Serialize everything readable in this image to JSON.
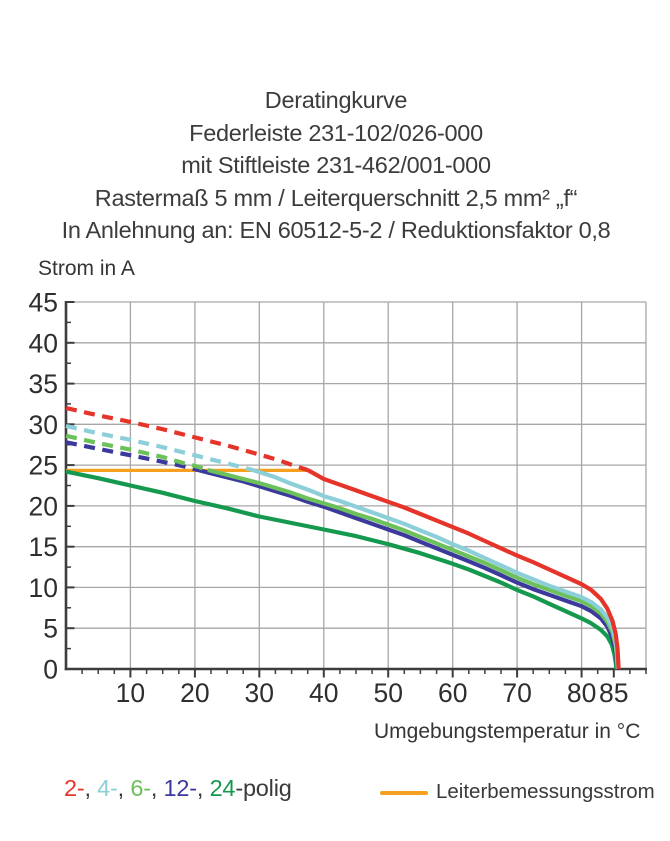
{
  "header": {
    "lines": [
      "Deratingkurve",
      "Federleiste 231-102/026-000",
      "mit Stiftleiste 231-462/001-000",
      "Rastermaß 5 mm / Leiterquerschnitt 2,5 mm² „f“",
      "In Anlehnung an: EN 60512-5-2 / Reduktionsfaktor 0,8"
    ]
  },
  "chart_data": {
    "type": "line",
    "title": "Deratingkurve",
    "xlabel": "Umgebungstemperatur in °C",
    "ylabel": "Strom in A",
    "xlim": [
      0,
      90
    ],
    "ylim": [
      0,
      45
    ],
    "grid": true,
    "grid_x_step": 10,
    "grid_y_step": 5,
    "x_tick_labels": [
      10,
      20,
      30,
      40,
      50,
      60,
      70,
      80,
      85
    ],
    "x_minor_step": 2.5,
    "y_tick_labels": [
      0,
      5,
      10,
      15,
      20,
      25,
      30,
      35,
      40,
      45
    ],
    "y_minor_step": 2.5,
    "colors": {
      "grid": "#a7a7a7",
      "axis": "#3d3d3d",
      "tick_label": "#2e2e2e",
      "pole2": "#e5342a",
      "pole4": "#8ccfd9",
      "pole6": "#6cc15a",
      "pole12": "#3b3a9c",
      "pole24": "#14994e",
      "reference": "#f5a11f"
    },
    "reference_line": {
      "name": "Leiterbemessungsstrom",
      "color": "#f5a11f",
      "y": 24.35,
      "x_start": 0,
      "x_end": 37.8
    },
    "series": [
      {
        "name": "24-polig",
        "poles": 24,
        "color": "#14994e",
        "style": "solid",
        "points": [
          [
            0,
            24.2
          ],
          [
            5,
            23.4
          ],
          [
            10,
            22.5
          ],
          [
            15,
            21.6
          ],
          [
            20,
            20.6
          ],
          [
            25,
            19.7
          ],
          [
            30,
            18.7
          ],
          [
            35,
            17.9
          ],
          [
            40,
            17.1
          ],
          [
            45,
            16.3
          ],
          [
            50,
            15.3
          ],
          [
            55,
            14.2
          ],
          [
            60,
            12.9
          ],
          [
            62.5,
            12.2
          ],
          [
            65,
            11.4
          ],
          [
            67.5,
            10.6
          ],
          [
            70,
            9.7
          ],
          [
            72.5,
            8.9
          ],
          [
            75,
            8.0
          ],
          [
            77.5,
            7.1
          ],
          [
            80,
            6.2
          ],
          [
            81.5,
            5.6
          ],
          [
            83,
            4.8
          ],
          [
            84,
            4.0
          ],
          [
            84.7,
            3.0
          ],
          [
            85.1,
            1.8
          ],
          [
            85.3,
            0.8
          ],
          [
            85.4,
            0
          ]
        ]
      },
      {
        "name": "12-polig",
        "poles": 12,
        "color": "#3b3a9c",
        "style": "dashed",
        "points": [
          [
            0,
            27.8
          ],
          [
            5,
            27.0
          ],
          [
            10,
            26.2
          ],
          [
            15,
            25.4
          ],
          [
            18,
            24.9
          ],
          [
            20.7,
            24.35
          ]
        ]
      },
      {
        "name": "12-polig",
        "poles": 12,
        "color": "#3b3a9c",
        "style": "solid",
        "points": [
          [
            20.7,
            24.35
          ],
          [
            22.5,
            24.0
          ],
          [
            25,
            23.5
          ],
          [
            27.5,
            23.0
          ],
          [
            30,
            22.4
          ],
          [
            32.5,
            21.8
          ],
          [
            35,
            21.2
          ],
          [
            37.5,
            20.5
          ],
          [
            40,
            19.9
          ],
          [
            42.5,
            19.2
          ],
          [
            45,
            18.5
          ],
          [
            47.5,
            17.8
          ],
          [
            50,
            17.1
          ],
          [
            52.5,
            16.4
          ],
          [
            55,
            15.6
          ],
          [
            57.5,
            14.8
          ],
          [
            60,
            14.0
          ],
          [
            62.5,
            13.2
          ],
          [
            65,
            12.4
          ],
          [
            67.5,
            11.5
          ],
          [
            70,
            10.6
          ],
          [
            72.5,
            9.8
          ],
          [
            75,
            9.1
          ],
          [
            77.5,
            8.4
          ],
          [
            80,
            7.7
          ],
          [
            81.5,
            7.1
          ],
          [
            83,
            6.2
          ],
          [
            84,
            5.2
          ],
          [
            84.7,
            4.0
          ],
          [
            85.2,
            2.5
          ],
          [
            85.45,
            1.2
          ],
          [
            85.55,
            0
          ]
        ]
      },
      {
        "name": "6-polig",
        "poles": 6,
        "color": "#6cc15a",
        "style": "dashed",
        "points": [
          [
            0,
            28.6
          ],
          [
            5,
            27.7
          ],
          [
            10,
            26.9
          ],
          [
            15,
            26.0
          ],
          [
            18,
            25.3
          ],
          [
            20.5,
            24.8
          ],
          [
            22,
            24.4
          ]
        ]
      },
      {
        "name": "6-polig",
        "poles": 6,
        "color": "#6cc15a",
        "style": "solid",
        "points": [
          [
            22,
            24.4
          ],
          [
            25,
            23.8
          ],
          [
            27.5,
            23.3
          ],
          [
            30,
            22.8
          ],
          [
            32.5,
            22.2
          ],
          [
            35,
            21.6
          ],
          [
            37.5,
            20.9
          ],
          [
            40,
            20.3
          ],
          [
            42.5,
            19.7
          ],
          [
            45,
            19.0
          ],
          [
            47.5,
            18.4
          ],
          [
            50,
            17.7
          ],
          [
            52.5,
            17.0
          ],
          [
            55,
            16.2
          ],
          [
            57.5,
            15.4
          ],
          [
            60,
            14.6
          ],
          [
            62.5,
            13.8
          ],
          [
            65,
            13.0
          ],
          [
            67.5,
            12.1
          ],
          [
            70,
            11.2
          ],
          [
            72.5,
            10.4
          ],
          [
            75,
            9.7
          ],
          [
            77.5,
            9.0
          ],
          [
            80,
            8.3
          ],
          [
            81.5,
            7.7
          ],
          [
            83,
            6.8
          ],
          [
            84,
            5.8
          ],
          [
            84.8,
            4.5
          ],
          [
            85.3,
            2.9
          ],
          [
            85.5,
            1.4
          ],
          [
            85.6,
            0
          ]
        ]
      },
      {
        "name": "4-polig",
        "poles": 4,
        "color": "#8ccfd9",
        "style": "dashed",
        "points": [
          [
            0,
            29.8
          ],
          [
            5,
            28.9
          ],
          [
            10,
            28.1
          ],
          [
            15,
            27.2
          ],
          [
            20,
            26.2
          ],
          [
            24,
            25.4
          ],
          [
            27,
            24.8
          ],
          [
            29,
            24.4
          ]
        ]
      },
      {
        "name": "4-polig",
        "poles": 4,
        "color": "#8ccfd9",
        "style": "solid",
        "points": [
          [
            29,
            24.4
          ],
          [
            32.5,
            23.5
          ],
          [
            35,
            22.7
          ],
          [
            37.5,
            22.0
          ],
          [
            40,
            21.2
          ],
          [
            42.5,
            20.6
          ],
          [
            45,
            19.9
          ],
          [
            47.5,
            19.2
          ],
          [
            50,
            18.5
          ],
          [
            52.5,
            17.8
          ],
          [
            55,
            17.0
          ],
          [
            57.5,
            16.2
          ],
          [
            60,
            15.3
          ],
          [
            62.5,
            14.5
          ],
          [
            65,
            13.6
          ],
          [
            67.5,
            12.7
          ],
          [
            70,
            11.8
          ],
          [
            72.5,
            11.0
          ],
          [
            75,
            10.2
          ],
          [
            77.5,
            9.5
          ],
          [
            80,
            8.8
          ],
          [
            81.5,
            8.2
          ],
          [
            83,
            7.3
          ],
          [
            84,
            6.3
          ],
          [
            84.8,
            5.0
          ],
          [
            85.3,
            3.4
          ],
          [
            85.55,
            1.8
          ],
          [
            85.65,
            0
          ]
        ]
      },
      {
        "name": "2-polig",
        "poles": 2,
        "color": "#e5342a",
        "style": "dashed",
        "points": [
          [
            0,
            32
          ],
          [
            5,
            31.1
          ],
          [
            10,
            30.3
          ],
          [
            15,
            29.4
          ],
          [
            20,
            28.4
          ],
          [
            25,
            27.4
          ],
          [
            30,
            26.3
          ],
          [
            33,
            25.6
          ],
          [
            35.5,
            24.9
          ],
          [
            37.5,
            24.4
          ]
        ]
      },
      {
        "name": "2-polig",
        "poles": 2,
        "color": "#e5342a",
        "style": "solid",
        "points": [
          [
            37.5,
            24.4
          ],
          [
            40,
            23.3
          ],
          [
            42.5,
            22.6
          ],
          [
            45,
            21.9
          ],
          [
            47.5,
            21.2
          ],
          [
            50,
            20.5
          ],
          [
            52.5,
            19.8
          ],
          [
            55,
            19.0
          ],
          [
            57.5,
            18.2
          ],
          [
            60,
            17.4
          ],
          [
            62.5,
            16.6
          ],
          [
            65,
            15.7
          ],
          [
            67.5,
            14.8
          ],
          [
            70,
            13.9
          ],
          [
            72.5,
            13.1
          ],
          [
            75,
            12.2
          ],
          [
            77.5,
            11.3
          ],
          [
            80,
            10.4
          ],
          [
            81.5,
            9.7
          ],
          [
            83,
            8.6
          ],
          [
            84,
            7.4
          ],
          [
            84.8,
            5.9
          ],
          [
            85.3,
            4.3
          ],
          [
            85.6,
            2.4
          ],
          [
            85.75,
            0
          ]
        ]
      }
    ]
  },
  "legend": {
    "poles_tokens": [
      {
        "text": "2-",
        "color": "#e5342a"
      },
      {
        "text": ", ",
        "color": "#3a3a3a"
      },
      {
        "text": "4-",
        "color": "#8ccfd9"
      },
      {
        "text": ", ",
        "color": "#3a3a3a"
      },
      {
        "text": "6-",
        "color": "#6cc15a"
      },
      {
        "text": ", ",
        "color": "#3a3a3a"
      },
      {
        "text": "12-",
        "color": "#3b3a9c"
      },
      {
        "text": ", ",
        "color": "#3a3a3a"
      },
      {
        "text": "24",
        "color": "#14994e"
      },
      {
        "text": "-polig",
        "color": "#3a3a3a"
      }
    ],
    "reference_label": "Leiterbemessungsstrom",
    "reference_color": "#f5a11f"
  }
}
